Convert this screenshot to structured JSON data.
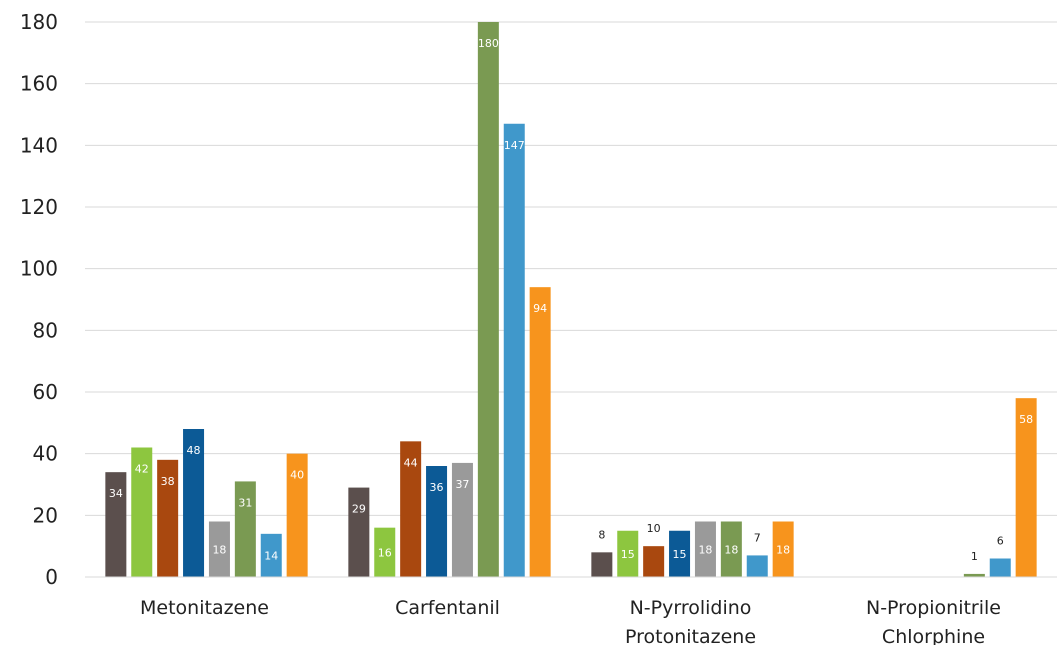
{
  "chart_data": {
    "type": "bar",
    "title": "",
    "xlabel": "",
    "ylabel": "",
    "ylim": [
      0,
      180
    ],
    "yticks": [
      0,
      20,
      40,
      60,
      80,
      100,
      120,
      140,
      160,
      180
    ],
    "grid": true,
    "legend": "none",
    "categories": [
      [
        "Metonitazene"
      ],
      [
        "Carfentanil"
      ],
      [
        "N-Pyrrolidino",
        "Protonitazene"
      ],
      [
        "N-Propionitrile",
        "Chlorphine"
      ]
    ],
    "series": [
      {
        "color": "#5b4f4d",
        "values": [
          34,
          29,
          8,
          null
        ]
      },
      {
        "color": "#8dc63f",
        "values": [
          42,
          16,
          15,
          null
        ]
      },
      {
        "color": "#a9480f",
        "values": [
          38,
          44,
          10,
          null
        ]
      },
      {
        "color": "#0c5a96",
        "values": [
          48,
          36,
          15,
          null
        ]
      },
      {
        "color": "#9a9a9a",
        "values": [
          18,
          37,
          18,
          null
        ]
      },
      {
        "color": "#7a9a52",
        "values": [
          31,
          180,
          18,
          1
        ]
      },
      {
        "color": "#4098cb",
        "values": [
          14,
          147,
          7,
          6
        ]
      },
      {
        "color": "#f7941d",
        "values": [
          40,
          94,
          18,
          58
        ]
      }
    ]
  }
}
